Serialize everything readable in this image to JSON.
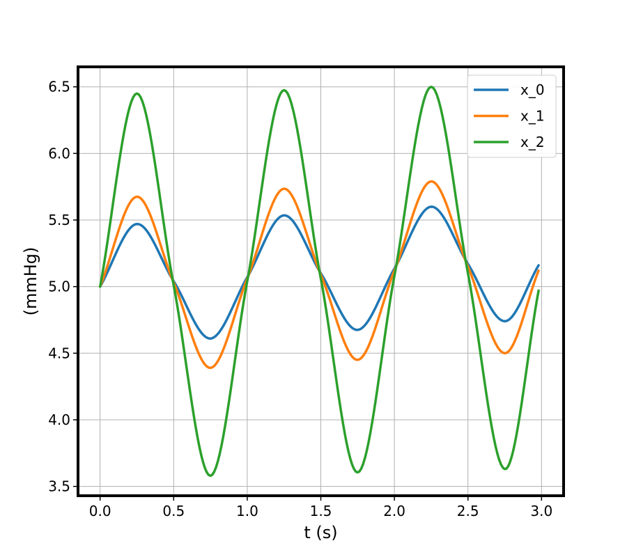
{
  "chart_data": {
    "type": "line",
    "title": "",
    "xlabel": "t (s)",
    "ylabel": "(mmHg)",
    "xlim": [
      -0.15,
      3.15
    ],
    "ylim": [
      3.43,
      6.65
    ],
    "xticks": [
      0.0,
      0.5,
      1.0,
      1.5,
      2.0,
      2.5,
      3.0
    ],
    "xtick_labels": [
      "0.0",
      "0.5",
      "1.0",
      "1.5",
      "2.0",
      "2.5",
      "3.0"
    ],
    "yticks": [
      3.5,
      4.0,
      4.5,
      5.0,
      5.5,
      6.0,
      6.5
    ],
    "ytick_labels": [
      "3.5",
      "4.0",
      "4.5",
      "5.0",
      "5.5",
      "6.0",
      "6.5"
    ],
    "grid": true,
    "legend_position": "top-right",
    "x": [
      0.0,
      0.25,
      0.5,
      0.75,
      1.0,
      1.25,
      1.5,
      1.75,
      2.0,
      2.25,
      2.5,
      2.75,
      2.98
    ],
    "series": [
      {
        "name": "x_0",
        "color": "#1f77b4",
        "values": [
          5.0,
          5.47,
          5.04,
          4.61,
          5.07,
          5.535,
          5.1,
          4.675,
          5.135,
          5.6,
          5.17,
          4.74,
          5.16
        ]
      },
      {
        "name": "x_1",
        "color": "#ff7f0e",
        "values": [
          5.0,
          5.675,
          5.03,
          4.39,
          5.06,
          5.735,
          5.09,
          4.45,
          5.12,
          5.79,
          5.15,
          4.5,
          5.12
        ]
      },
      {
        "name": "x_2",
        "color": "#2ca02c",
        "values": [
          5.0,
          6.45,
          5.01,
          3.58,
          5.04,
          6.475,
          5.06,
          3.605,
          5.08,
          6.5,
          5.1,
          3.63,
          4.97
        ]
      }
    ]
  }
}
